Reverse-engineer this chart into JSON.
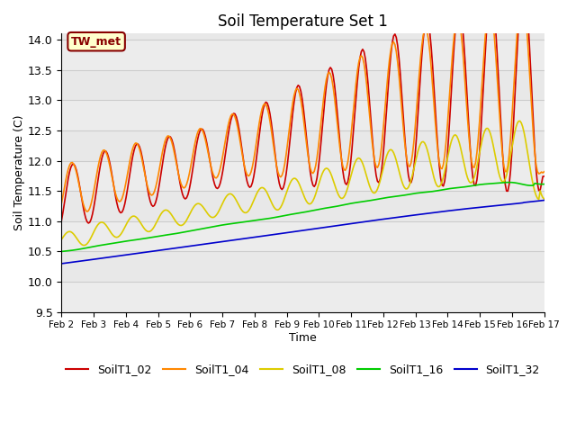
{
  "title": "Soil Temperature Set 1",
  "xlabel": "Time",
  "ylabel": "Soil Temperature (C)",
  "ylim": [
    9.5,
    14.1
  ],
  "background_color": "#ffffff",
  "plot_bg_color": "#e8e8e8",
  "annotation_text": "TW_met",
  "annotation_bg": "#ffffcc",
  "annotation_fg": "#880000",
  "series": {
    "SoilT1_02": {
      "color": "#cc0000",
      "linewidth": 1.2
    },
    "SoilT1_04": {
      "color": "#ff8800",
      "linewidth": 1.2
    },
    "SoilT1_08": {
      "color": "#ddcc00",
      "linewidth": 1.2
    },
    "SoilT1_16": {
      "color": "#00cc00",
      "linewidth": 1.2
    },
    "SoilT1_32": {
      "color": "#0000cc",
      "linewidth": 1.2
    }
  },
  "xtick_labels": [
    "Feb 2",
    "Feb 3",
    "Feb 4",
    "Feb 5",
    "Feb 6",
    "Feb 7",
    "Feb 8",
    "Feb 9",
    "Feb 10",
    "Feb 11",
    "Feb 12",
    "Feb 13",
    "Feb 14",
    "Feb 15",
    "Feb 16",
    "Feb 17"
  ],
  "ytick_values": [
    9.5,
    10.0,
    10.5,
    11.0,
    11.5,
    12.0,
    12.5,
    13.0,
    13.5,
    14.0
  ],
  "grid_color": "#cccccc",
  "legend_entries": [
    "SoilT1_02",
    "SoilT1_04",
    "SoilT1_08",
    "SoilT1_16",
    "SoilT1_32"
  ]
}
